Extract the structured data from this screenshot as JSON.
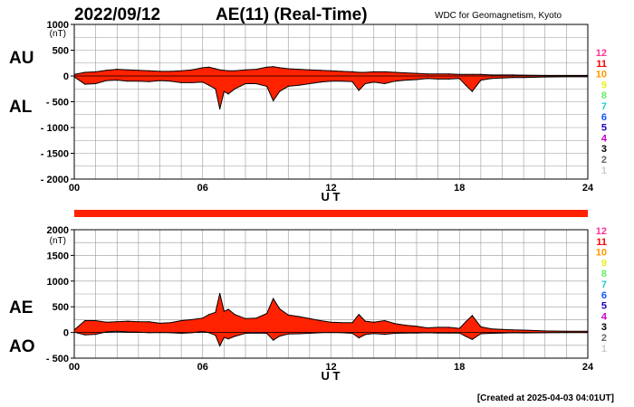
{
  "header": {
    "date": "2022/09/12",
    "title": "AE(11) (Real-Time)",
    "source": "WDC for Geomagnetism, Kyoto"
  },
  "footer": {
    "created": "[Created at 2025-04-03 04:01UT]"
  },
  "colors": {
    "fill": "#ff2200",
    "outline": "#000000",
    "grid": "#999999",
    "bar": "#ff2200"
  },
  "station_colors": [
    "#ff3399",
    "#ff0000",
    "#ff9900",
    "#eeee22",
    "#66ee66",
    "#22cccc",
    "#1155ff",
    "#2200bb",
    "#cc00cc",
    "#000000",
    "#666666",
    "#cccccc"
  ],
  "station_labels": [
    "12",
    "11",
    "10",
    "9",
    "8",
    "7",
    "6",
    "5",
    "4",
    "3",
    "2",
    "1"
  ],
  "chart_data": [
    {
      "type": "area",
      "panel": "upper",
      "series_names": [
        "AU",
        "AL"
      ],
      "unit": "(nT)",
      "xlabel": "U T",
      "x_ticks": [
        "00",
        "06",
        "12",
        "18",
        "24"
      ],
      "xlim": [
        0,
        24
      ],
      "ylim": [
        -2000,
        1000
      ],
      "y_ticks": [
        "1000",
        "500",
        "0",
        "- 500",
        "- 1000",
        "- 1500",
        "- 2000"
      ],
      "x": [
        0,
        0.5,
        1,
        1.5,
        2,
        2.5,
        3,
        3.5,
        4,
        4.5,
        5,
        5.5,
        6,
        6.3,
        6.6,
        6.8,
        7,
        7.2,
        7.5,
        8,
        8.5,
        9,
        9.3,
        9.6,
        10,
        10.5,
        11,
        11.5,
        12,
        12.5,
        13,
        13.3,
        13.6,
        14,
        14.5,
        15,
        15.5,
        16,
        16.5,
        17,
        17.5,
        18,
        18.3,
        18.6,
        19,
        19.5,
        20,
        20.5,
        21,
        22,
        23,
        24
      ],
      "au": [
        30,
        70,
        80,
        110,
        130,
        120,
        110,
        100,
        90,
        90,
        100,
        120,
        160,
        170,
        140,
        120,
        110,
        100,
        100,
        120,
        130,
        170,
        180,
        160,
        140,
        130,
        120,
        110,
        100,
        90,
        80,
        70,
        70,
        80,
        80,
        70,
        60,
        50,
        40,
        40,
        40,
        30,
        30,
        30,
        30,
        20,
        20,
        20,
        15,
        10,
        10,
        10
      ],
      "al": [
        -20,
        -160,
        -150,
        -90,
        -80,
        -100,
        -100,
        -110,
        -90,
        -100,
        -130,
        -130,
        -120,
        -180,
        -250,
        -640,
        -300,
        -350,
        -250,
        -150,
        -150,
        -200,
        -480,
        -300,
        -200,
        -180,
        -150,
        -120,
        -100,
        -100,
        -110,
        -280,
        -150,
        -120,
        -150,
        -100,
        -80,
        -70,
        -50,
        -60,
        -60,
        -50,
        -180,
        -300,
        -80,
        -50,
        -40,
        -30,
        -30,
        -20,
        -15,
        -15
      ]
    },
    {
      "type": "area",
      "panel": "lower",
      "series_names": [
        "AE",
        "AO"
      ],
      "unit": "(nT)",
      "xlabel": "U T",
      "x_ticks": [
        "00",
        "06",
        "12",
        "18",
        "24"
      ],
      "xlim": [
        0,
        24
      ],
      "ylim": [
        -500,
        2000
      ],
      "y_ticks": [
        "2000",
        "1500",
        "1000",
        "500",
        "0",
        "- 500"
      ],
      "x": [
        0,
        0.5,
        1,
        1.5,
        2,
        2.5,
        3,
        3.5,
        4,
        4.5,
        5,
        5.5,
        6,
        6.3,
        6.6,
        6.8,
        7,
        7.2,
        7.5,
        8,
        8.5,
        9,
        9.3,
        9.6,
        10,
        10.5,
        11,
        11.5,
        12,
        12.5,
        13,
        13.3,
        13.6,
        14,
        14.5,
        15,
        15.5,
        16,
        16.5,
        17,
        17.5,
        18,
        18.3,
        18.6,
        19,
        19.5,
        20,
        20.5,
        21,
        22,
        23,
        24
      ],
      "ae": [
        50,
        230,
        230,
        200,
        210,
        220,
        210,
        210,
        180,
        190,
        230,
        250,
        280,
        350,
        390,
        760,
        410,
        450,
        350,
        270,
        280,
        370,
        660,
        460,
        340,
        310,
        270,
        230,
        200,
        190,
        190,
        350,
        220,
        200,
        230,
        170,
        140,
        120,
        90,
        100,
        100,
        80,
        210,
        330,
        110,
        70,
        60,
        50,
        45,
        30,
        25,
        25
      ],
      "ao": [
        5,
        -45,
        -35,
        10,
        25,
        10,
        5,
        -5,
        0,
        -5,
        -15,
        -5,
        20,
        -5,
        -55,
        -260,
        -95,
        -125,
        -75,
        -15,
        -10,
        -15,
        -150,
        -70,
        -30,
        -25,
        -15,
        -5,
        0,
        -5,
        -15,
        -105,
        -40,
        -20,
        -35,
        -15,
        -10,
        -10,
        -5,
        -10,
        -10,
        -10,
        -75,
        -135,
        -25,
        -15,
        -10,
        -5,
        -8,
        -5,
        -3,
        -3
      ]
    }
  ]
}
